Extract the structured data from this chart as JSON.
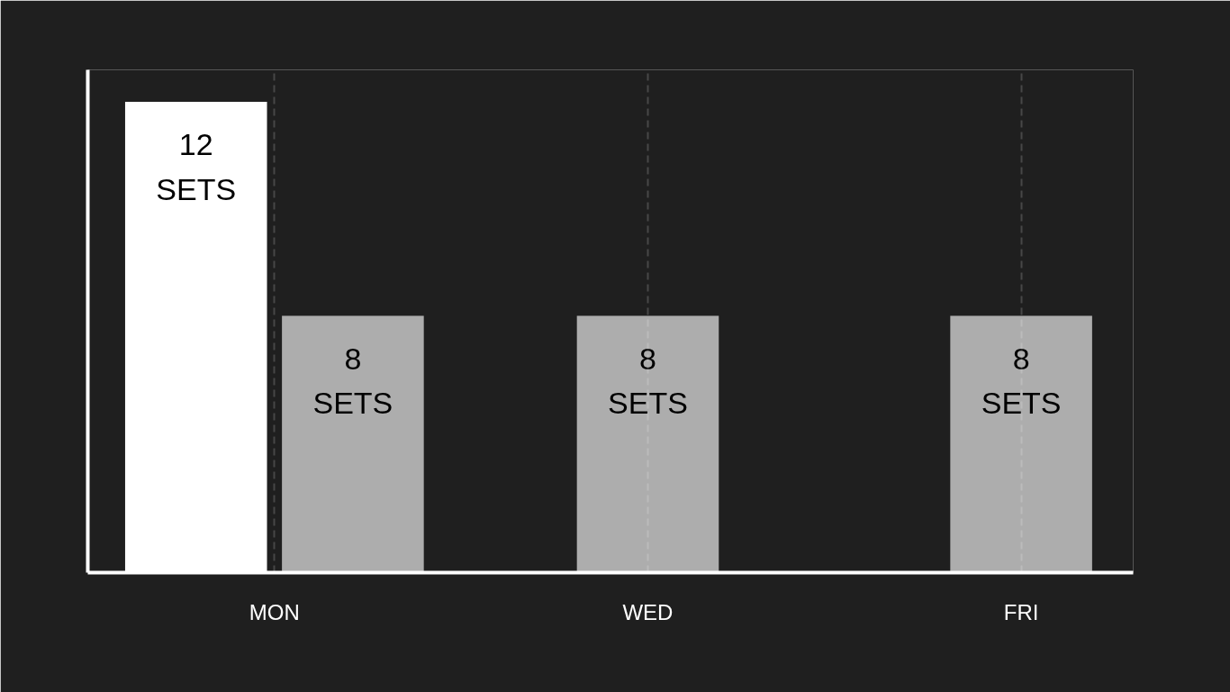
{
  "chart_data": {
    "type": "bar",
    "categories": [
      "MON",
      "WED",
      "FRI"
    ],
    "series": [
      {
        "color": "#ffffff",
        "values": [
          12,
          null,
          null
        ],
        "value_labels": [
          "12 SETS",
          null,
          null
        ]
      },
      {
        "color": "#adadad",
        "values": [
          8,
          8,
          8
        ],
        "value_labels": [
          "8 SETS",
          "8 SETS",
          "8 SETS"
        ]
      }
    ],
    "ylim": [
      3.2,
      12.6
    ],
    "grid": "x",
    "tick_labels": "x"
  }
}
